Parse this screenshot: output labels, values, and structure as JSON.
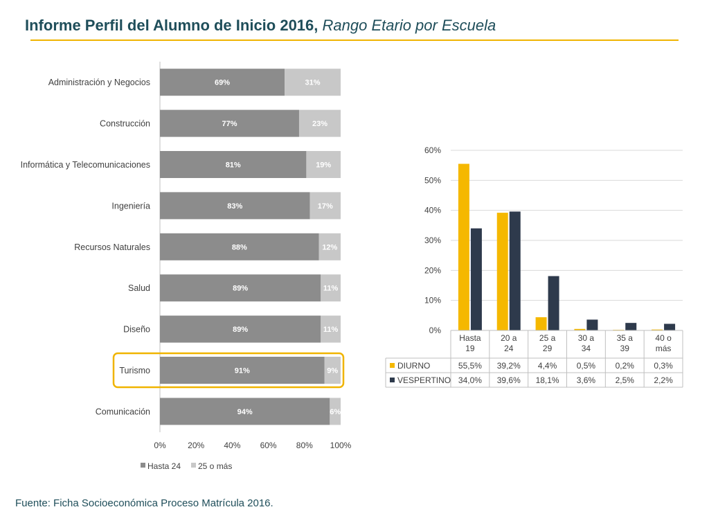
{
  "header": {
    "title": "Informe Perfil del Alumno de Inicio 2016,",
    "subtitle": "Rango Etario por Escuela"
  },
  "footer": {
    "source": "Fuente: Ficha Socioeconómica Proceso Matrícula 2016."
  },
  "colors": {
    "hasta24": "#8c8c8c",
    "mas25": "#c8c8c8",
    "diurno": "#f5b800",
    "vespertino": "#2e3a4c",
    "highlight": "#f0b400"
  },
  "chart_data": [
    {
      "type": "bar",
      "orientation": "horizontal",
      "stacked": true,
      "percent": true,
      "categories": [
        "Administración y Negocios",
        "Construcción",
        "Informática y Telecomunicaciones",
        "Ingeniería",
        "Recursos Naturales",
        "Salud",
        "Diseño",
        "Turismo",
        "Comunicación"
      ],
      "series": [
        {
          "name": "Hasta 24",
          "values": [
            69,
            77,
            81,
            83,
            88,
            89,
            89,
            91,
            94
          ]
        },
        {
          "name": "25 o más",
          "values": [
            31,
            23,
            19,
            17,
            12,
            11,
            11,
            9,
            6
          ]
        }
      ],
      "data_labels": [
        [
          "69%",
          "77%",
          "81%",
          "83%",
          "88%",
          "89%",
          "89%",
          "91%",
          "94%"
        ],
        [
          "31%",
          "23%",
          "19%",
          "17%",
          "12%",
          "11%",
          "11%",
          "9%",
          "6%"
        ]
      ],
      "x_ticks": [
        "0%",
        "20%",
        "40%",
        "60%",
        "80%",
        "100%"
      ],
      "xlim": [
        0,
        100
      ],
      "highlighted_category": "Turismo",
      "legend_position": "bottom"
    },
    {
      "type": "bar",
      "categories": [
        "Hasta 19",
        "20 a 24",
        "25 a 29",
        "30 a 34",
        "35 a 39",
        "40 o más"
      ],
      "series": [
        {
          "name": "DIURNO",
          "values": [
            55.5,
            39.2,
            4.4,
            0.5,
            0.2,
            0.3
          ],
          "labels": [
            "55,5%",
            "39,2%",
            "4,4%",
            "0,5%",
            "0,2%",
            "0,3%"
          ]
        },
        {
          "name": "VESPERTINO",
          "values": [
            34.0,
            39.6,
            18.1,
            3.6,
            2.5,
            2.2
          ],
          "labels": [
            "34,0%",
            "39,6%",
            "18,1%",
            "3,6%",
            "2,5%",
            "2,2%"
          ]
        }
      ],
      "y_ticks": [
        "0%",
        "10%",
        "20%",
        "30%",
        "40%",
        "50%",
        "60%"
      ],
      "ylim": [
        0,
        60
      ],
      "grid": true,
      "legend_position": "data-table"
    }
  ]
}
